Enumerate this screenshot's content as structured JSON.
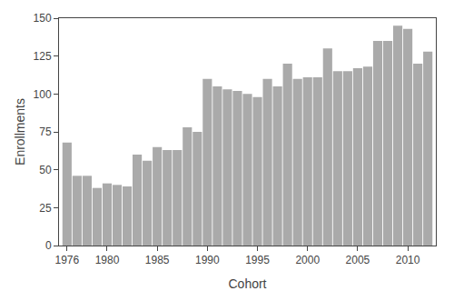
{
  "chart_data": {
    "type": "bar",
    "x": [
      1976,
      1977,
      1978,
      1979,
      1980,
      1981,
      1982,
      1983,
      1984,
      1985,
      1986,
      1987,
      1988,
      1989,
      1990,
      1991,
      1992,
      1993,
      1994,
      1995,
      1996,
      1997,
      1998,
      1999,
      2000,
      2001,
      2002,
      2003,
      2004,
      2005,
      2006,
      2007,
      2008,
      2009,
      2010,
      2011,
      2012
    ],
    "values": [
      68,
      46,
      46,
      38,
      41,
      40,
      39,
      60,
      56,
      65,
      63,
      63,
      78,
      75,
      110,
      105,
      103,
      102,
      100,
      98,
      110,
      105,
      120,
      110,
      111,
      111,
      130,
      115,
      115,
      117,
      118,
      135,
      135,
      145,
      143,
      120,
      128
    ],
    "color": "#aaaaaa",
    "xlabel": "Cohort",
    "ylabel": "Enrollments",
    "xlim": [
      1975.2,
      2012.8
    ],
    "xticks": [
      1976,
      1980,
      1985,
      1990,
      1995,
      2000,
      2005,
      2010
    ],
    "ylim": [
      0,
      150
    ],
    "yticks": [
      0,
      25,
      50,
      75,
      100,
      125,
      150
    ],
    "grid": false
  }
}
